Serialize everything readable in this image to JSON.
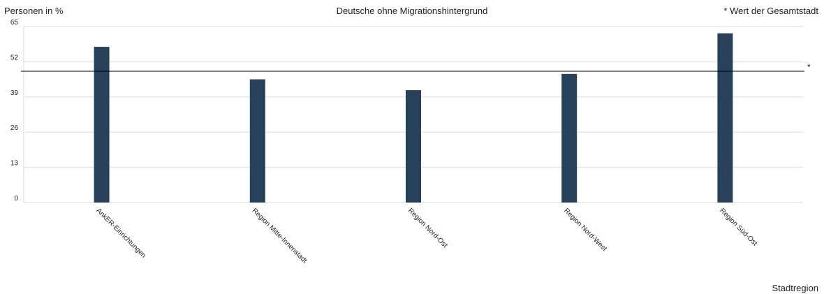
{
  "chart_data": {
    "type": "bar",
    "title": "Deutsche ohne Migrationshintergrund",
    "ylabel": "Personen in %",
    "xlabel": "Stadtregion",
    "categories": [
      "AnkER-Einrichtungen",
      "Region Mitte-Innenstadt",
      "Region Nord-Ost",
      "Region Nord-West",
      "Region Süd-Ost"
    ],
    "series": [
      {
        "values": [
          57.5,
          45.5,
          41.5,
          47.5,
          62.5
        ]
      }
    ],
    "yticks": [
      0,
      13,
      26,
      39,
      52,
      65
    ],
    "ylim": [
      0,
      65
    ],
    "reference_line": {
      "value": 48.5,
      "marker": "*",
      "note": "* Wert der Gesamtstadt"
    },
    "grid": true,
    "colors": {
      "bar": "#27415a",
      "grid": "#dddddd",
      "reference": "#000000"
    }
  }
}
